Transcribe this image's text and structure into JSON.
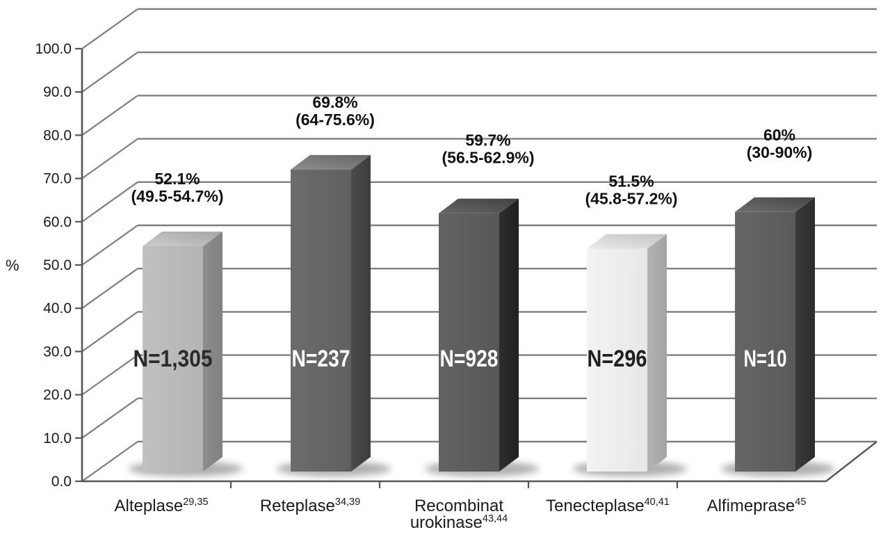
{
  "chart_data": {
    "type": "bar",
    "style": "3d-column",
    "title": "",
    "xlabel": "",
    "ylabel": "%",
    "ylim": [
      0,
      100
    ],
    "ytick_step": 10,
    "ytick_labels": [
      "0.0",
      "10.0",
      "20.0",
      "30.0",
      "40.0",
      "50.0",
      "60.0",
      "70.0",
      "80.0",
      "90.0",
      "100.0"
    ],
    "grid": true,
    "legend": false,
    "categories": [
      "Alteplase",
      "Reteplase",
      "Recombinat urokinase",
      "Tenecteplase",
      "Alfimeprase"
    ],
    "category_superscripts": [
      "29,35",
      "34,39",
      "43,44",
      "40,41",
      "45"
    ],
    "values": [
      52.1,
      69.8,
      59.7,
      51.5,
      60
    ],
    "value_labels": [
      "52.1%",
      "69.8%",
      "59.7%",
      "51.5%",
      "60%"
    ],
    "ci_labels": [
      "(49.5-54.7%)",
      "(64-75.6%)",
      "(56.5-62.9%)",
      "(45.8-57.2%)",
      "(30-90%)"
    ],
    "n_labels": [
      "N=1,305",
      "N=237",
      "N=928",
      "N=296",
      "N=10"
    ],
    "bar_styles": [
      {
        "front": "#b9b9b9",
        "top": "#b4b4b4",
        "side": "#8e8e8e",
        "n_text": "#2b2b2b"
      },
      {
        "front": "#656565",
        "top": "#757575",
        "side": "#4b4b4b",
        "n_text": "#ffffff"
      },
      {
        "front": "#5c5c5c",
        "top": "#4f4f4f",
        "side": "#2e2e2e",
        "n_text": "#ffffff"
      },
      {
        "front": "#ececec",
        "top": "#d2d2d2",
        "side": "#b2b2b2",
        "n_text": "#1f1f1f"
      },
      {
        "front": "#5f5f5f",
        "top": "#555555",
        "side": "#3a3a3a",
        "n_text": "#ffffff"
      }
    ],
    "colors": {
      "background": "#ffffff",
      "gridline": "#7e7e7e",
      "axis": "#565656",
      "label_text": "#1b1b1b",
      "annotation_text": "#111111"
    }
  }
}
